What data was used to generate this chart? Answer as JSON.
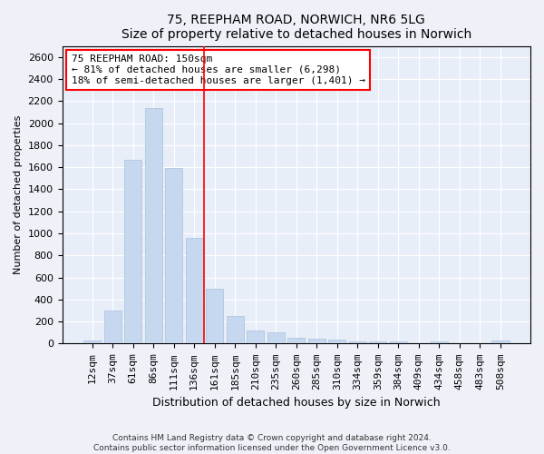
{
  "title1": "75, REEPHAM ROAD, NORWICH, NR6 5LG",
  "title2": "Size of property relative to detached houses in Norwich",
  "xlabel": "Distribution of detached houses by size in Norwich",
  "ylabel": "Number of detached properties",
  "categories": [
    "12sqm",
    "37sqm",
    "61sqm",
    "86sqm",
    "111sqm",
    "136sqm",
    "161sqm",
    "185sqm",
    "210sqm",
    "235sqm",
    "260sqm",
    "285sqm",
    "310sqm",
    "334sqm",
    "359sqm",
    "384sqm",
    "409sqm",
    "434sqm",
    "458sqm",
    "483sqm",
    "508sqm"
  ],
  "values": [
    25,
    300,
    1670,
    2140,
    1595,
    960,
    500,
    250,
    120,
    100,
    50,
    45,
    35,
    20,
    20,
    20,
    5,
    20,
    5,
    5,
    25
  ],
  "bar_color": "#c5d8f0",
  "bar_edge_color": "#aac0dc",
  "vline_x": 5.5,
  "vline_color": "red",
  "annotation_text": "75 REEPHAM ROAD: 150sqm\n← 81% of detached houses are smaller (6,298)\n18% of semi-detached houses are larger (1,401) →",
  "annotation_box_color": "white",
  "annotation_box_edge_color": "red",
  "ylim": [
    0,
    2700
  ],
  "yticks": [
    0,
    200,
    400,
    600,
    800,
    1000,
    1200,
    1400,
    1600,
    1800,
    2000,
    2200,
    2400,
    2600
  ],
  "footer1": "Contains HM Land Registry data © Crown copyright and database right 2024.",
  "footer2": "Contains public sector information licensed under the Open Government Licence v3.0.",
  "bg_color": "#eef2f8",
  "plot_bg_color": "#e8eef8",
  "title_fontsize": 10,
  "axis_label_fontsize": 8,
  "tick_fontsize": 8,
  "annotation_fontsize": 8
}
